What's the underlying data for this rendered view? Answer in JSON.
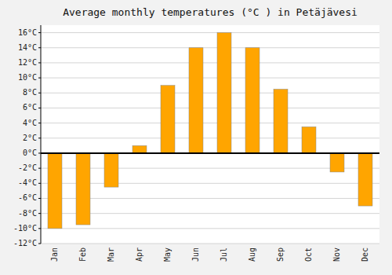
{
  "chart_data": {
    "type": "bar",
    "title": "Average monthly temperatures (°C ) in Petäjävesi",
    "categories": [
      "Jan",
      "Feb",
      "Mar",
      "Apr",
      "May",
      "Jun",
      "Jul",
      "Aug",
      "Sep",
      "Oct",
      "Nov",
      "Dec"
    ],
    "values": [
      -10,
      -9.5,
      -4.5,
      1,
      9,
      14,
      16,
      14,
      8.5,
      3.5,
      -2.5,
      -7
    ],
    "color": "#FFA500",
    "ylim": [
      -12,
      17
    ],
    "yticks": [
      {
        "value": -12,
        "label": "-12°C"
      },
      {
        "value": -10,
        "label": "-10°C"
      },
      {
        "value": -8,
        "label": "-8°C"
      },
      {
        "value": -6,
        "label": "-6°C"
      },
      {
        "value": -4,
        "label": "-4°C"
      },
      {
        "value": -2,
        "label": "-2°C"
      },
      {
        "value": 0,
        "label": "0°C"
      },
      {
        "value": 2,
        "label": "2°C"
      },
      {
        "value": 4,
        "label": "4°C"
      },
      {
        "value": 6,
        "label": "6°C"
      },
      {
        "value": 8,
        "label": "8°C"
      },
      {
        "value": 10,
        "label": "10°C"
      },
      {
        "value": 12,
        "label": "12°C"
      },
      {
        "value": 14,
        "label": "14°C"
      },
      {
        "value": 16,
        "label": "16°C"
      }
    ],
    "grid": true
  }
}
